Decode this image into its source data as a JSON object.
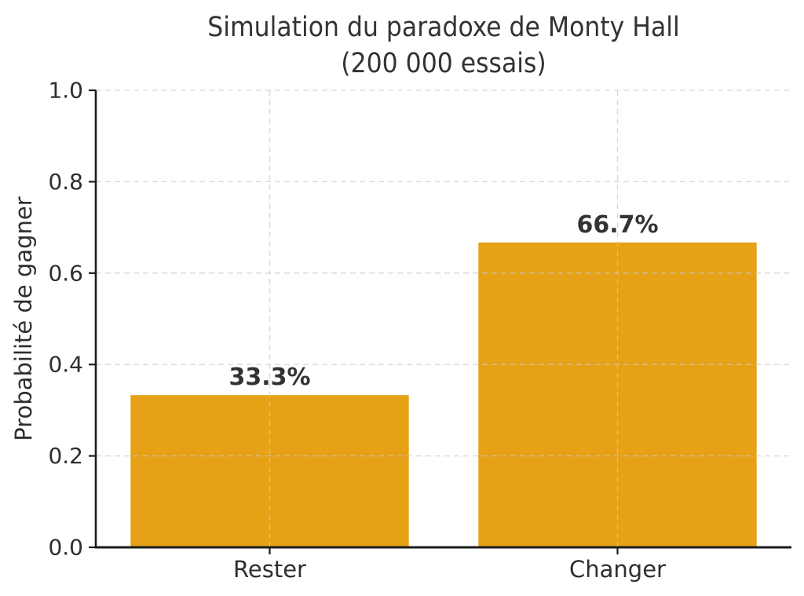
{
  "chart_data": {
    "type": "bar",
    "title": "Simulation du paradoxe de Monty Hall (200 000 essais)",
    "title_line1": "Simulation du paradoxe de Monty Hall",
    "title_line2": "(200 000 essais)",
    "ylabel": "Probabilité de gagner",
    "xlabel": "",
    "categories": [
      "Rester",
      "Changer"
    ],
    "values": [
      0.333,
      0.667
    ],
    "bar_labels": [
      "33.3%",
      "66.7%"
    ],
    "ylim": [
      0.0,
      1.0
    ],
    "yticks": [
      0.0,
      0.2,
      0.4,
      0.6,
      0.8,
      1.0
    ],
    "ytick_labels": [
      "0.0",
      "0.2",
      "0.4",
      "0.6",
      "0.8",
      "1.0"
    ],
    "grid": "dashed-horizontal-and-vertical",
    "legend": "none",
    "bar_color": "#E6A117",
    "value_label_color": "#333333",
    "text_color": "#2E2E2E",
    "axis_color": "#1C1C1C",
    "grid_color": "#C9C9C9",
    "background": "#FFFFFF"
  }
}
